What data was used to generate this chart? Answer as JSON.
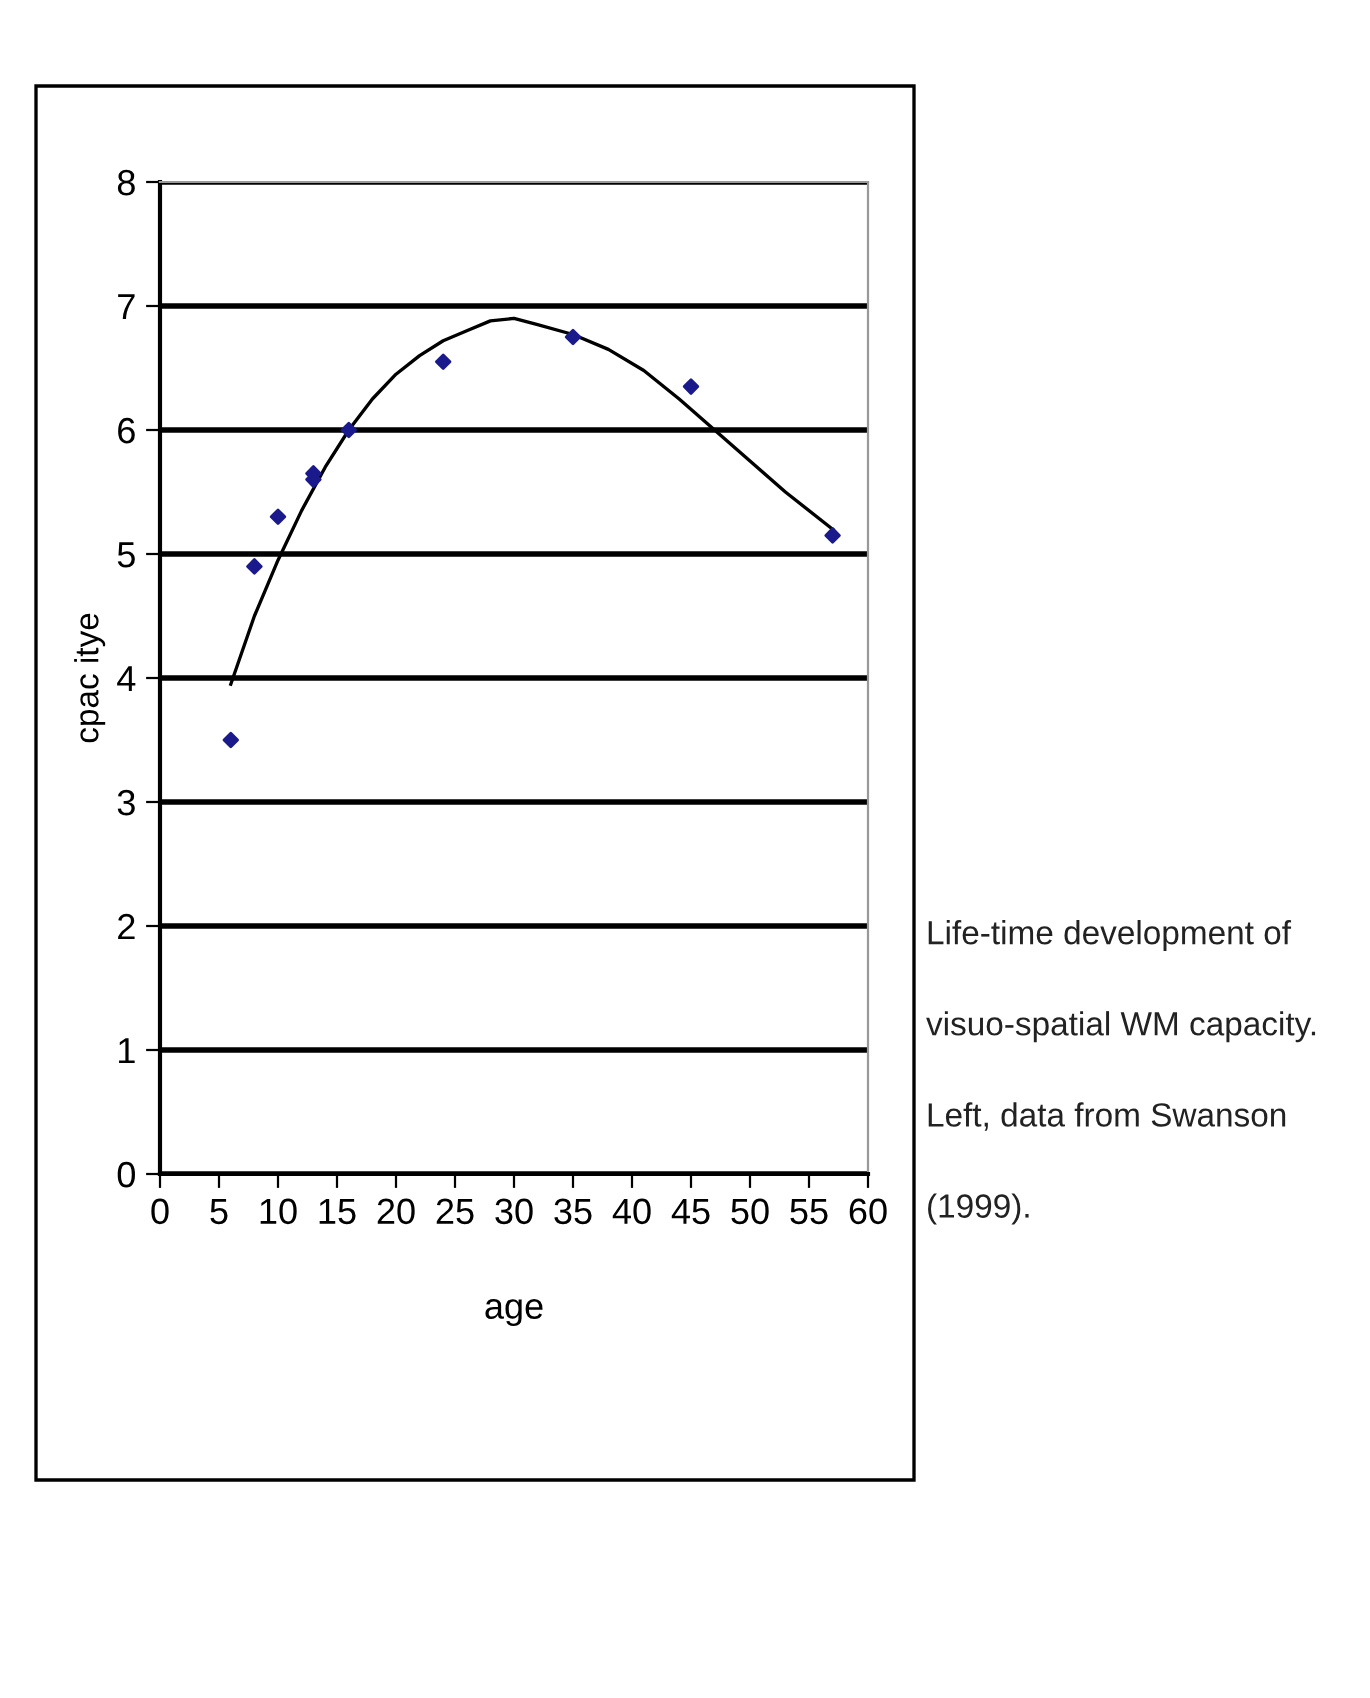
{
  "chart_data": {
    "type": "scatter",
    "xlabel": "age",
    "ylabel": "cpac itye",
    "xlim": [
      0,
      60
    ],
    "ylim": [
      0,
      8
    ],
    "xticks": [
      0,
      5,
      10,
      15,
      20,
      25,
      30,
      35,
      40,
      45,
      50,
      55,
      60
    ],
    "yticks": [
      0,
      1,
      2,
      3,
      4,
      5,
      6,
      7,
      8
    ],
    "grid": "y",
    "marker": "diamond",
    "series": [
      {
        "color": "#1a1a8c",
        "x": [
          6,
          8,
          10,
          13,
          13,
          16,
          24,
          35,
          45,
          57
        ],
        "values": [
          3.5,
          4.9,
          5.3,
          5.65,
          5.6,
          6.0,
          6.55,
          6.75,
          6.35,
          5.15
        ]
      },
      {
        "type": "line",
        "color": "#000000",
        "marker": "none",
        "line_style": "solid",
        "x": [
          6,
          8,
          10,
          12,
          14,
          16,
          18,
          20,
          22,
          24,
          26,
          28,
          30,
          32,
          35,
          38,
          41,
          44,
          47,
          50,
          53,
          57
        ],
        "values": [
          3.95,
          4.5,
          4.95,
          5.35,
          5.7,
          6.0,
          6.25,
          6.45,
          6.6,
          6.72,
          6.8,
          6.88,
          6.9,
          6.85,
          6.77,
          6.65,
          6.48,
          6.25,
          6.0,
          5.75,
          5.5,
          5.2
        ]
      }
    ],
    "annotations": [
      "Life-time development of\n\nvisuo-spatial WM capacity.\n\nLeft, data from Swanson\n\n(1999)."
    ]
  }
}
